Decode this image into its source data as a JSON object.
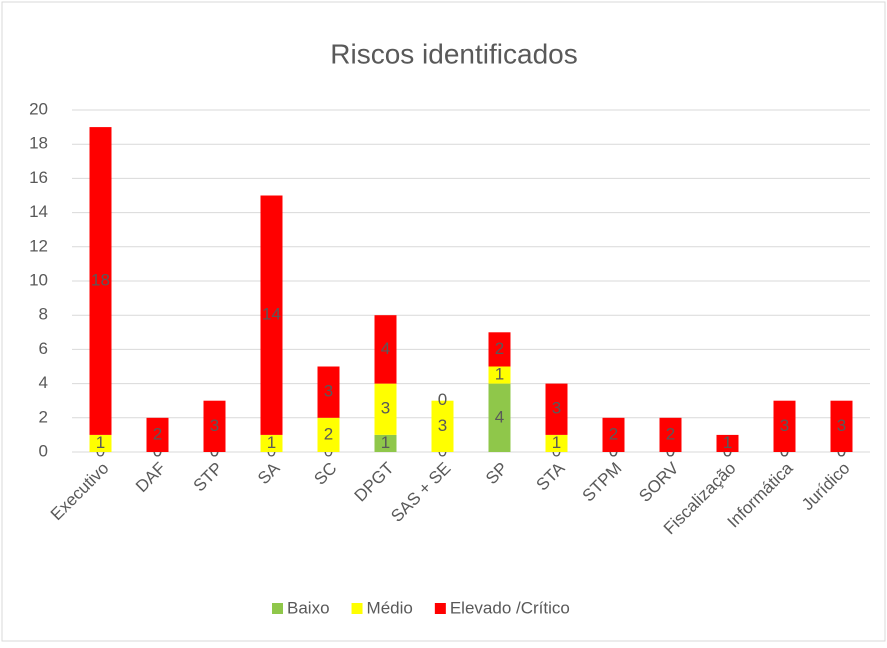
{
  "chart_data": {
    "type": "stacked_bar",
    "title": "Riscos identificados",
    "categories": [
      "Executivo",
      "DAF",
      "STP",
      "SA",
      "SC",
      "DPGT",
      "SAS + SE",
      "SP",
      "STA",
      "STPM",
      "SORV",
      "Fiscalização",
      "Informática",
      "Jurídico"
    ],
    "series": [
      {
        "name": "Baixo",
        "color": "#8fc74a",
        "values": [
          0,
          0,
          0,
          0,
          0,
          1,
          0,
          4,
          0,
          0,
          0,
          0,
          0,
          0
        ]
      },
      {
        "name": "Médio",
        "color": "#ffff00",
        "values": [
          1,
          0,
          0,
          1,
          2,
          3,
          3,
          1,
          1,
          0,
          0,
          0,
          0,
          0
        ]
      },
      {
        "name": "Elevado /Crítico",
        "color": "#ff0000",
        "values": [
          18,
          2,
          3,
          14,
          3,
          4,
          0,
          2,
          3,
          2,
          2,
          1,
          3,
          3
        ]
      }
    ],
    "ylim": [
      0,
      20
    ],
    "yticks": [
      0,
      2,
      4,
      6,
      8,
      10,
      12,
      14,
      16,
      18,
      20
    ],
    "grid": true,
    "legend": "bottom"
  }
}
